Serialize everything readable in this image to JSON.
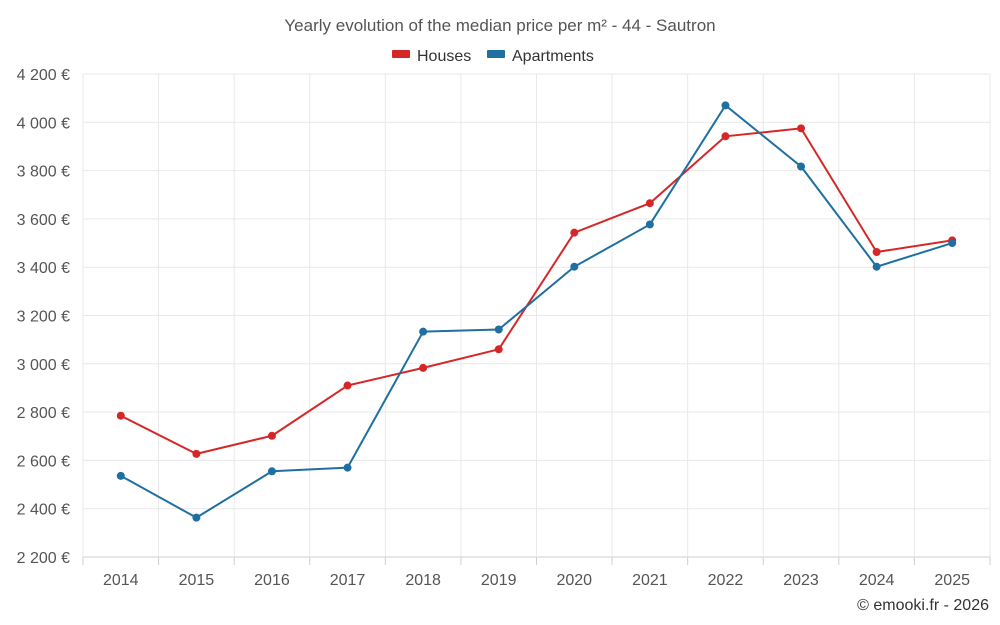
{
  "chart_data": {
    "type": "line",
    "title": "Yearly evolution of the median price per m² - 44 - Sautron",
    "xlabel": "",
    "ylabel": "",
    "categories": [
      "2014",
      "2015",
      "2016",
      "2017",
      "2018",
      "2019",
      "2020",
      "2021",
      "2022",
      "2023",
      "2024",
      "2025"
    ],
    "ylim": [
      2200,
      4200
    ],
    "yticks": [
      2200,
      2400,
      2600,
      2800,
      3000,
      3200,
      3400,
      3600,
      3800,
      4000,
      4200
    ],
    "ytick_labels": [
      "2 200 €",
      "2 400 €",
      "2 600 €",
      "2 800 €",
      "3 000 €",
      "3 200 €",
      "3 400 €",
      "3 600 €",
      "3 800 €",
      "4 000 €",
      "4 200 €"
    ],
    "grid": true,
    "legend_position": "top-center",
    "series": [
      {
        "name": "Houses",
        "color": "#d62728",
        "values": [
          2785,
          2627,
          2702,
          2910,
          2983,
          3060,
          3543,
          3665,
          3942,
          3975,
          3463,
          3511
        ]
      },
      {
        "name": "Apartments",
        "color": "#1f6fa1",
        "values": [
          2536,
          2363,
          2555,
          2570,
          3133,
          3142,
          3402,
          3577,
          4070,
          3817,
          3402,
          3500
        ]
      }
    ]
  },
  "credit": "© emooki.fr - 2026"
}
